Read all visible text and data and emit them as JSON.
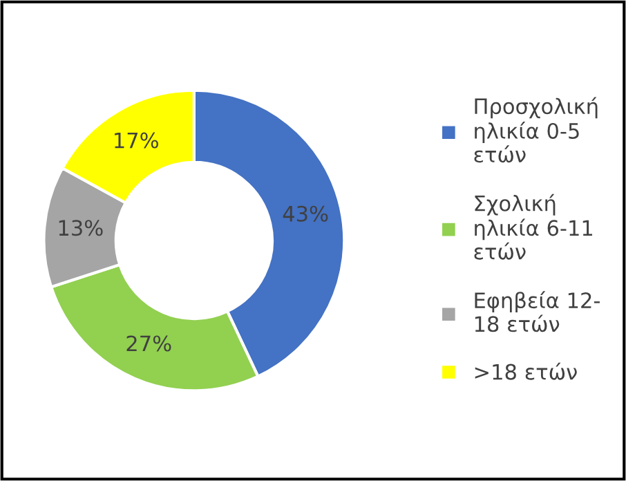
{
  "chart_data": {
    "type": "donut",
    "categories": [
      "Προσχολική\nηλικία 0-5\nετών",
      "Σχολική\nηλικία 6-11\nετών",
      "Εφηβεία 12-\n18 ετών",
      ">18 ετών"
    ],
    "values": [
      43,
      27,
      13,
      17
    ],
    "colors": [
      "#4472c4",
      "#92d050",
      "#a5a5a5",
      "#ffff00"
    ],
    "value_labels": [
      "43%",
      "27%",
      "13%",
      "17%"
    ],
    "legend": "right"
  }
}
